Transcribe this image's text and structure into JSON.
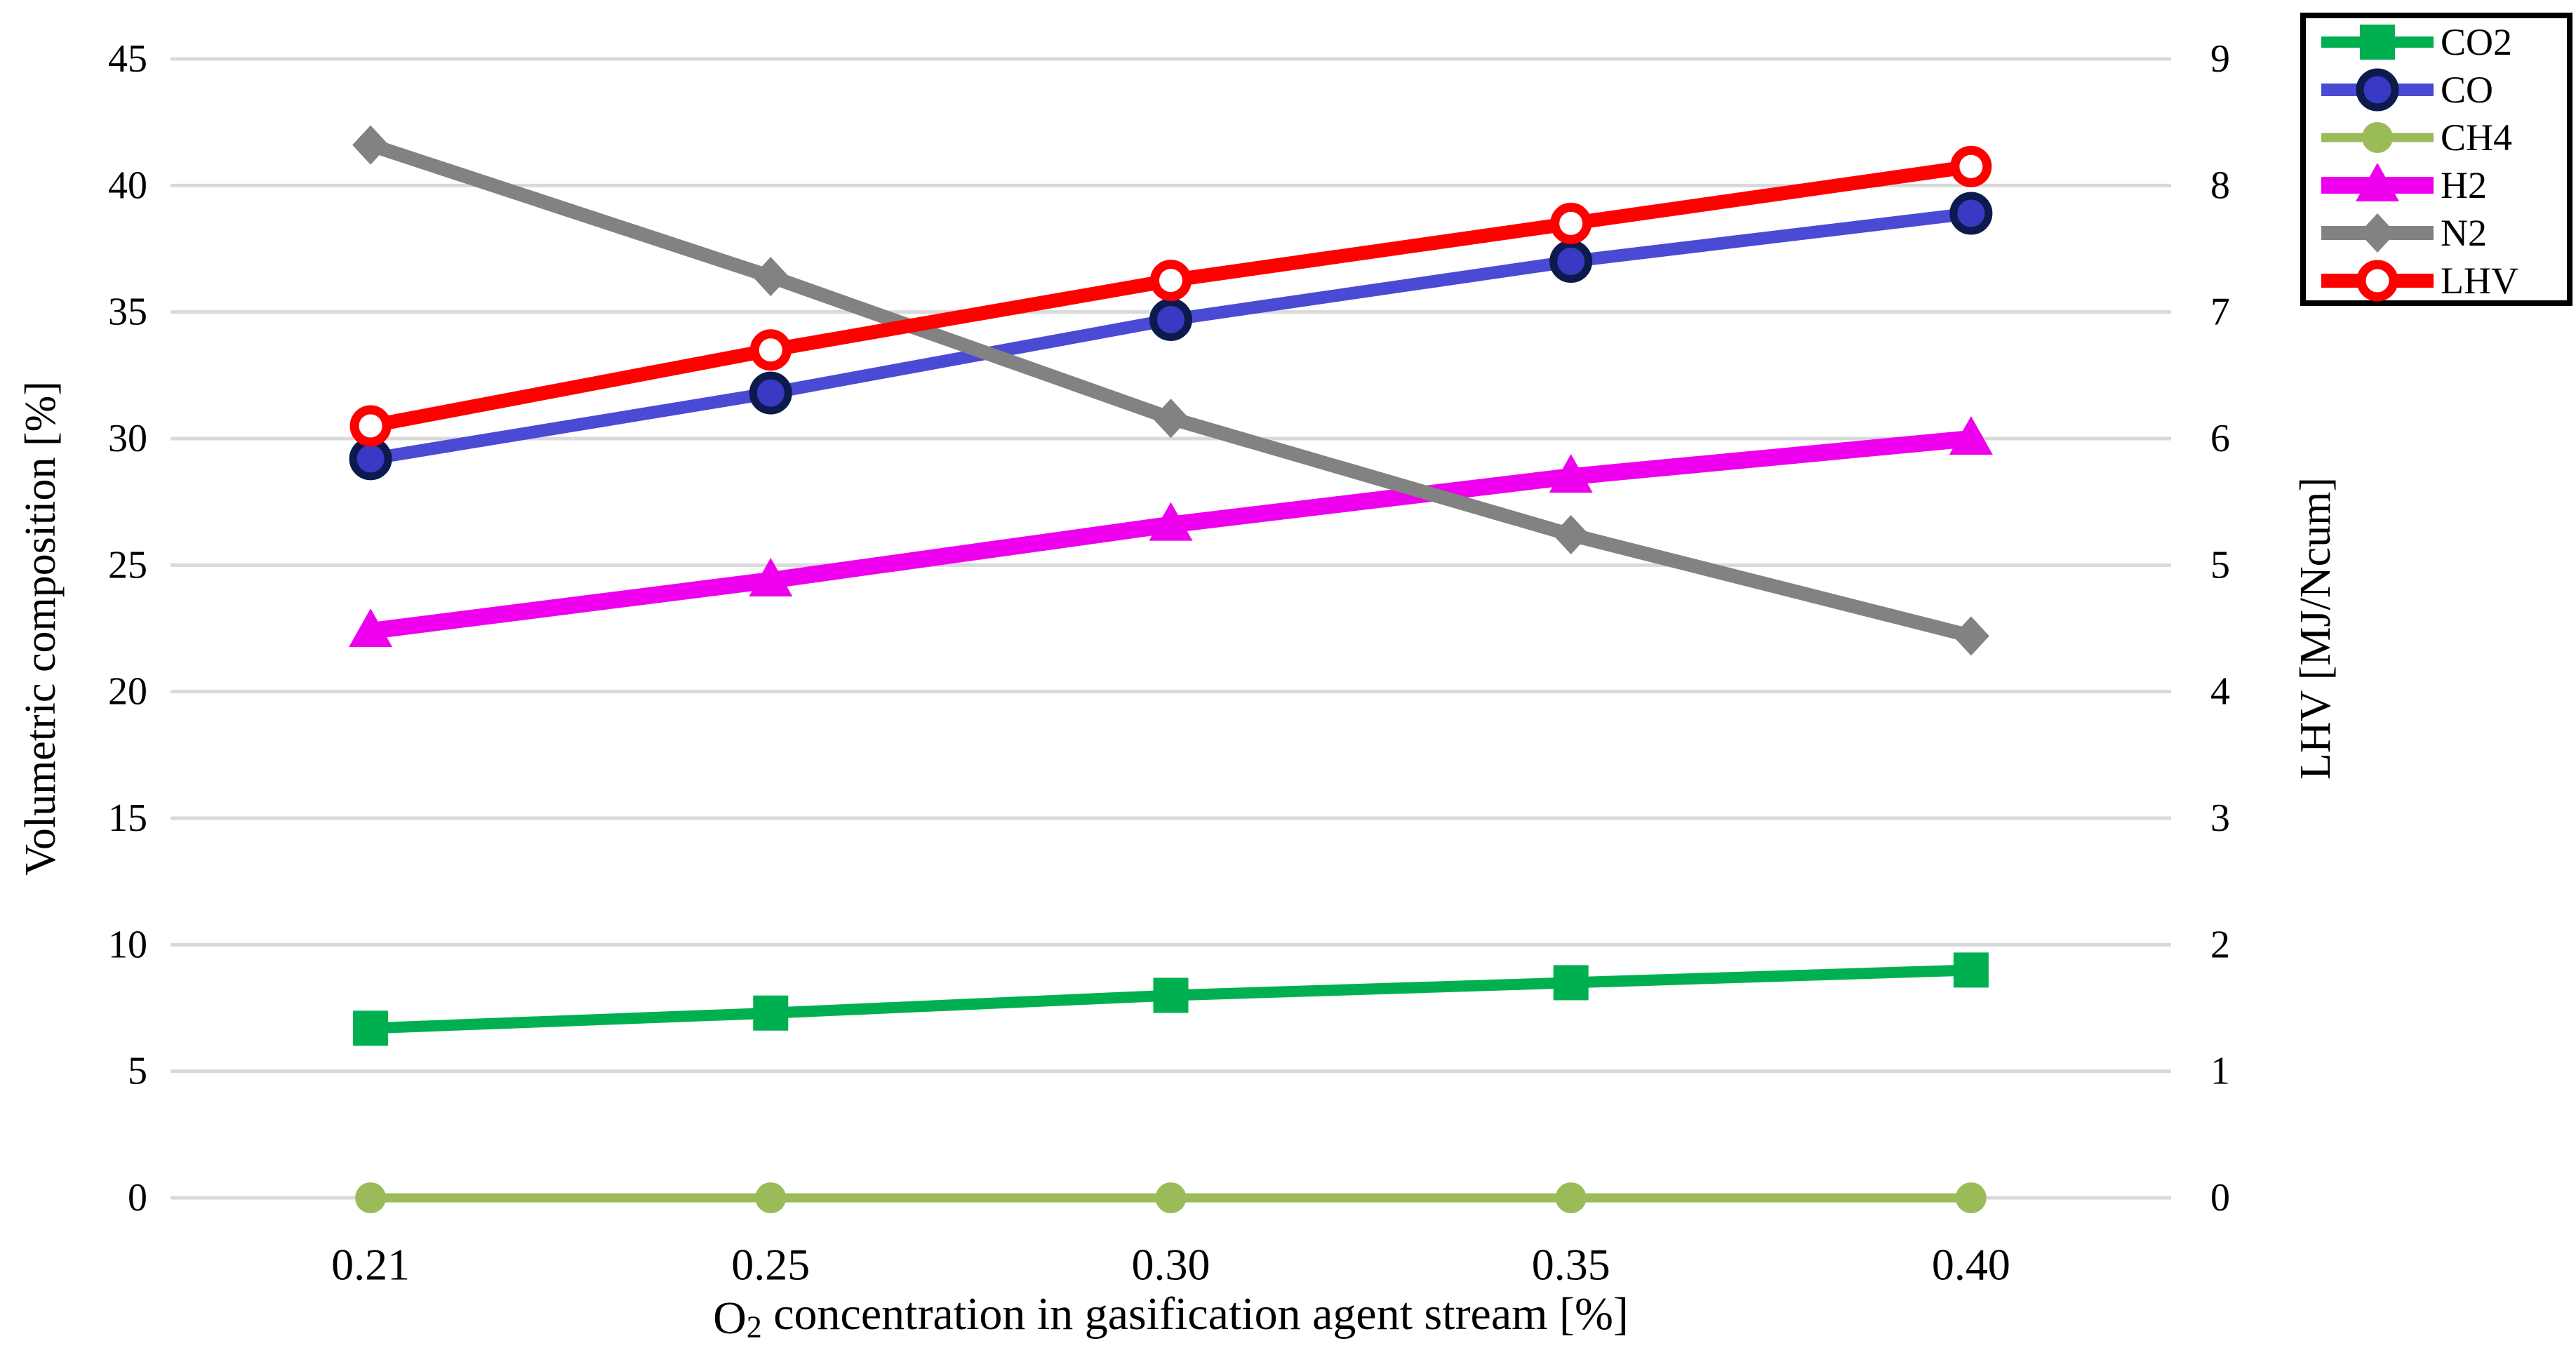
{
  "chart_data": {
    "type": "line",
    "title": "",
    "x_categories": [
      "0.21",
      "0.25",
      "0.30",
      "0.35",
      "0.40"
    ],
    "xlabel": "O2 concentration in gasification agent stream [%]",
    "xlabel_parts": {
      "prefix": "O",
      "subscript": "2",
      "rest": " concentration in gasification agent stream [%]"
    },
    "ylabel_left": "Volumetric composition [%]",
    "ylabel_right": "LHV [MJ/Ncum]",
    "y_left": {
      "min": 0,
      "max": 45,
      "step": 5
    },
    "y_right": {
      "min": 0,
      "max": 9,
      "step": 1
    },
    "grid": true,
    "legend_position": "top-right",
    "series": [
      {
        "name": "CO2",
        "axis": "left",
        "color": "#00B050",
        "line_width": 16,
        "marker": "square",
        "marker_fill": "#00B050",
        "marker_stroke": "#00B050",
        "values": [
          6.7,
          7.3,
          8.0,
          8.5,
          9.0
        ]
      },
      {
        "name": "CO",
        "axis": "left",
        "color": "#4A4AD4",
        "line_width": 18,
        "marker": "circle",
        "marker_fill": "#3939C4",
        "marker_stroke": "#0D1A4D",
        "values": [
          29.2,
          31.8,
          34.7,
          37.0,
          38.9
        ]
      },
      {
        "name": "CH4",
        "axis": "left",
        "color": "#9BBB59",
        "line_width": 13,
        "marker": "dot",
        "marker_fill": "#9BBB59",
        "marker_stroke": "#9BBB59",
        "values": [
          0,
          0,
          0,
          0,
          0
        ]
      },
      {
        "name": "H2",
        "axis": "left",
        "color": "#EE00EE",
        "line_width": 24,
        "marker": "triangle",
        "marker_fill": "#EE00EE",
        "marker_stroke": "#EE00EE",
        "values": [
          22.4,
          24.4,
          26.6,
          28.5,
          30.0
        ]
      },
      {
        "name": "N2",
        "axis": "left",
        "color": "#828282",
        "line_width": 20,
        "marker": "diamond",
        "marker_fill": "#828282",
        "marker_stroke": "#828282",
        "values": [
          41.6,
          36.4,
          30.8,
          26.2,
          22.2
        ]
      },
      {
        "name": "LHV",
        "axis": "right",
        "color": "#FE0000",
        "line_width": 20,
        "marker": "open-circle",
        "marker_fill": "#FFFFFF",
        "marker_stroke": "#FE0000",
        "values": [
          6.1,
          6.7,
          7.25,
          7.7,
          8.15
        ]
      }
    ],
    "colors": {
      "gridline": "#D9D9D9",
      "text": "#000000",
      "legend_border": "#000000",
      "background": "#FFFFFF"
    }
  }
}
